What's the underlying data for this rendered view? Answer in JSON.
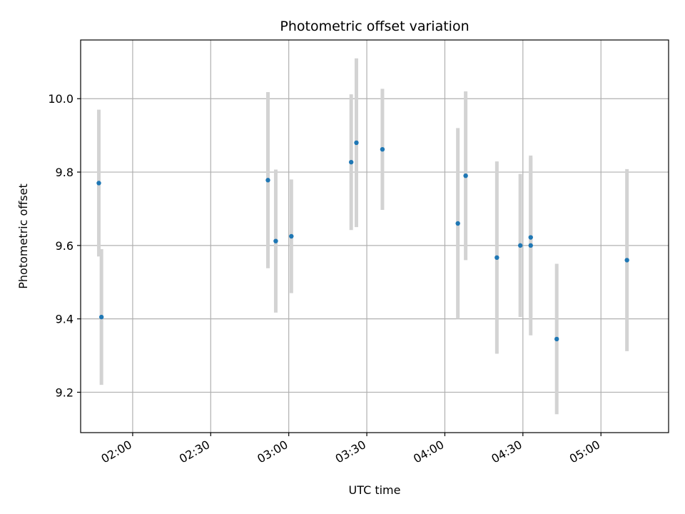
{
  "chart_data": {
    "type": "scatter",
    "title": "Photometric offset variation",
    "xlabel": "UTC time",
    "ylabel": "Photometric offset",
    "xlim": [
      "01:40",
      "05:26"
    ],
    "ylim": [
      9.09,
      10.16
    ],
    "x_ticks": [
      "02:00",
      "02:30",
      "03:00",
      "03:30",
      "04:00",
      "04:30",
      "05:00"
    ],
    "y_ticks": [
      9.2,
      9.4,
      9.6,
      9.8,
      10.0
    ],
    "y_tick_labels": [
      "9.2",
      "9.4",
      "9.6",
      "9.8",
      "10.0"
    ],
    "grid": true,
    "colors": {
      "point": "#1f77b4",
      "errorbar": "#d3d3d3",
      "grid": "#b0b0b0"
    },
    "series": [
      {
        "points": [
          {
            "x": "01:47",
            "y": 9.77,
            "yerr": 0.2
          },
          {
            "x": "01:48",
            "y": 9.405,
            "yerr": 0.185
          },
          {
            "x": "02:52",
            "y": 9.778,
            "yerr": 0.24
          },
          {
            "x": "02:55",
            "y": 9.612,
            "yerr": 0.195
          },
          {
            "x": "03:01",
            "y": 9.625,
            "yerr": 0.155
          },
          {
            "x": "03:24",
            "y": 9.827,
            "yerr": 0.185
          },
          {
            "x": "03:26",
            "y": 9.88,
            "yerr": 0.23
          },
          {
            "x": "03:36",
            "y": 9.862,
            "yerr": 0.165
          },
          {
            "x": "04:05",
            "y": 9.66,
            "yerr": 0.26
          },
          {
            "x": "04:08",
            "y": 9.79,
            "yerr": 0.23
          },
          {
            "x": "04:20",
            "y": 9.567,
            "yerr": 0.262
          },
          {
            "x": "04:29",
            "y": 9.6,
            "yerr": 0.195
          },
          {
            "x": "04:33",
            "y": 9.6,
            "yerr": 0.245
          },
          {
            "x": "04:33",
            "y": 9.622,
            "yerr": 0.218
          },
          {
            "x": "04:43",
            "y": 9.345,
            "yerr": 0.205
          },
          {
            "x": "05:10",
            "y": 9.56,
            "yerr": 0.248
          }
        ]
      }
    ]
  }
}
